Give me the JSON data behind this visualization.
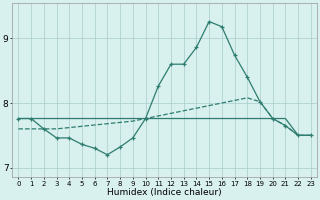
{
  "xlabel": "Humidex (Indice chaleur)",
  "x_values": [
    0,
    1,
    2,
    3,
    4,
    5,
    6,
    7,
    8,
    9,
    10,
    11,
    12,
    13,
    14,
    15,
    16,
    17,
    18,
    19,
    20,
    21,
    22,
    23
  ],
  "line_spike_y": [
    7.76,
    7.76,
    7.6,
    7.46,
    7.46,
    7.36,
    7.3,
    7.2,
    7.32,
    7.46,
    7.76,
    8.26,
    8.6,
    8.6,
    8.86,
    9.26,
    9.18,
    8.74,
    8.4,
    8.02,
    7.76,
    7.65,
    7.5,
    7.5
  ],
  "line_dash_y": [
    7.6,
    7.6,
    7.6,
    7.6,
    7.62,
    7.64,
    7.66,
    7.68,
    7.7,
    7.72,
    7.76,
    7.8,
    7.84,
    7.88,
    7.92,
    7.96,
    8.0,
    8.04,
    8.08,
    8.02,
    7.76,
    7.65,
    7.5,
    7.5
  ],
  "line_flat_y": [
    7.76,
    7.76,
    7.76,
    7.76,
    7.76,
    7.76,
    7.76,
    7.76,
    7.76,
    7.76,
    7.76,
    7.76,
    7.76,
    7.76,
    7.76,
    7.76,
    7.76,
    7.76,
    7.76,
    7.76,
    7.76,
    7.76,
    7.5,
    7.5
  ],
  "line_color": "#2e7d70",
  "bg_color": "#d8f0ee",
  "grid_color": "#aacccc",
  "ylim": [
    6.85,
    9.55
  ],
  "yticks": [
    7,
    8,
    9
  ],
  "xlim": [
    -0.5,
    23.5
  ]
}
